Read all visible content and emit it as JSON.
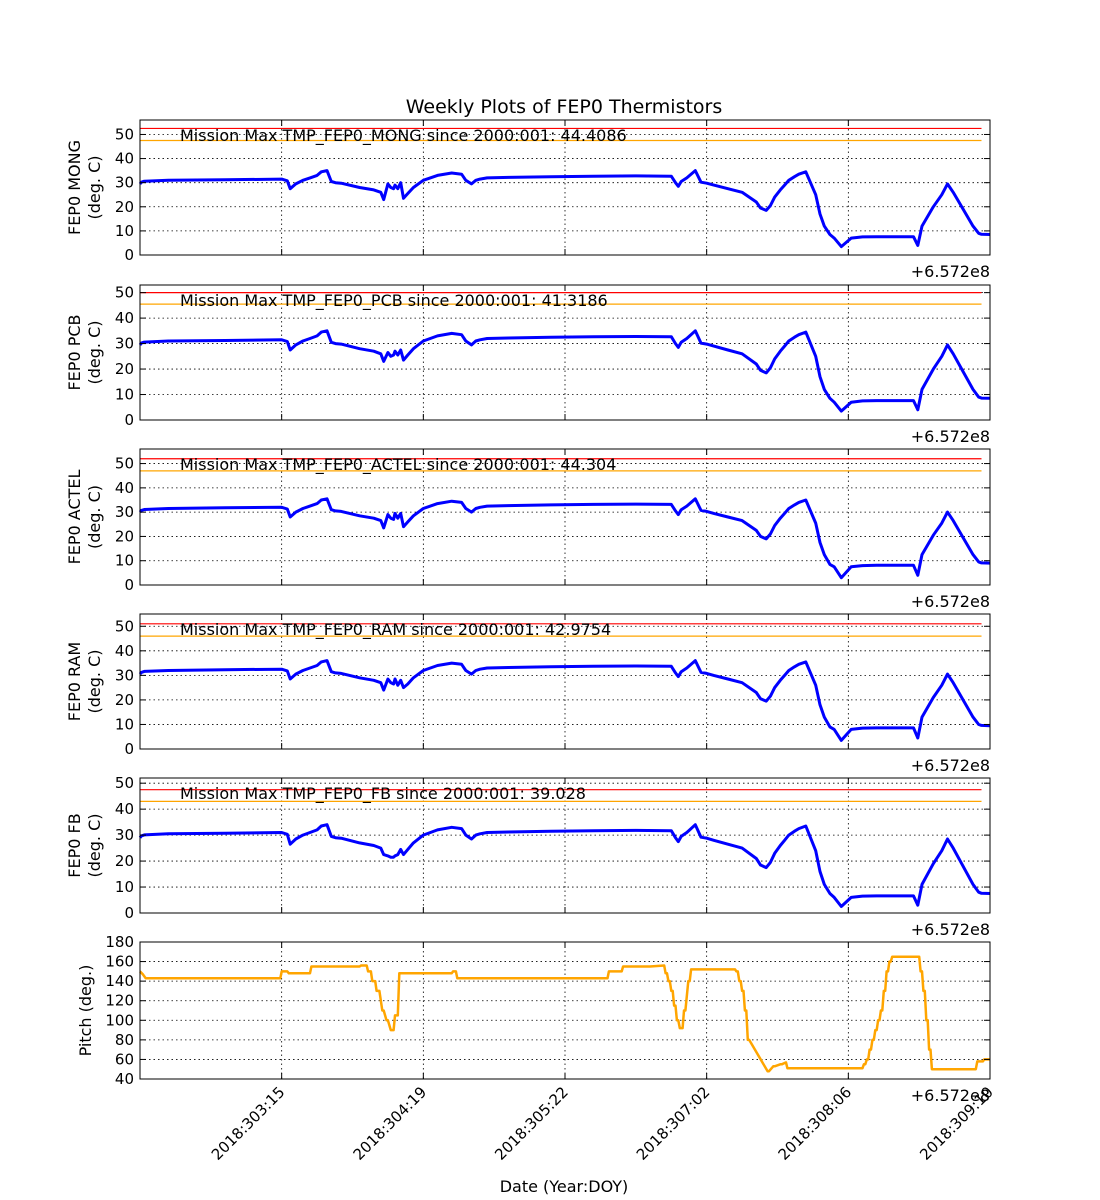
{
  "chart_data": {
    "title": "Weekly Plots of FEP0 Thermistors",
    "xlabel": "Date (Year:DOY)",
    "x_tick_labels": [
      "2018:303:15",
      "2018:304:19",
      "2018:305:22",
      "2018:307:02",
      "2018:308:06",
      "2018:309:10"
    ],
    "x_tick_positions": [
      1.0,
      2.0,
      3.0,
      4.0,
      5.0,
      6.0
    ],
    "x_range": [
      0,
      6
    ],
    "offset_text": "+6.572e8",
    "grid": true,
    "temperature_x": [
      0,
      0.01,
      0.03,
      0.2,
      0.6,
      1.0,
      1.04,
      1.06,
      1.1,
      1.15,
      1.2,
      1.25,
      1.28,
      1.32,
      1.35,
      1.38,
      1.42,
      1.55,
      1.65,
      1.7,
      1.72,
      1.75,
      1.77,
      1.79,
      1.8,
      1.82,
      1.84,
      1.86,
      1.89,
      1.93,
      2.0,
      2.1,
      2.2,
      2.27,
      2.3,
      2.34,
      2.37,
      2.4,
      2.45,
      2.6,
      2.9,
      3.2,
      3.5,
      3.75,
      3.78,
      3.8,
      3.82,
      3.86,
      3.88,
      3.92,
      3.96,
      4.0,
      4.05,
      4.15,
      4.25,
      4.35,
      4.38,
      4.42,
      4.45,
      4.48,
      4.52,
      4.55,
      4.58,
      4.62,
      4.65,
      4.7,
      4.77,
      4.8,
      4.83,
      4.87,
      4.9,
      4.95,
      5.02,
      5.1,
      5.2,
      5.35,
      5.4,
      5.46,
      5.49,
      5.52,
      5.6,
      5.66,
      5.7,
      5.74,
      5.8,
      5.88,
      5.92,
      5.94,
      6.0
    ],
    "pitch_x": [
      0,
      0.02,
      0.04,
      0.5,
      0.99,
      1.0,
      1.04,
      1.05,
      1.2,
      1.21,
      1.55,
      1.56,
      1.6,
      1.61,
      1.63,
      1.64,
      1.66,
      1.67,
      1.69,
      1.71,
      1.72,
      1.74,
      1.75,
      1.77,
      1.79,
      1.8,
      1.82,
      1.83,
      2.2,
      2.21,
      2.23,
      2.24,
      3.0,
      3.3,
      3.31,
      3.4,
      3.41,
      3.6,
      3.7,
      3.71,
      3.72,
      3.73,
      3.74,
      3.75,
      3.76,
      3.77,
      3.78,
      3.79,
      3.8,
      3.81,
      3.83,
      3.84,
      3.85,
      3.87,
      3.88,
      3.89,
      4.2,
      4.21,
      4.22,
      4.23,
      4.24,
      4.25,
      4.26,
      4.27,
      4.28,
      4.29,
      4.3,
      4.43,
      4.44,
      4.47,
      4.48,
      4.52,
      4.53,
      4.56,
      4.57,
      5.1,
      5.11,
      5.12,
      5.13,
      5.14,
      5.15,
      5.16,
      5.17,
      5.18,
      5.19,
      5.2,
      5.21,
      5.22,
      5.23,
      5.24,
      5.25,
      5.26,
      5.27,
      5.28,
      5.29,
      5.3,
      5.31,
      5.32,
      5.33,
      5.34,
      5.35,
      5.36,
      5.37,
      5.38,
      5.39,
      5.5,
      5.51,
      5.52,
      5.53,
      5.54,
      5.55,
      5.56,
      5.57,
      5.58,
      5.59,
      5.9,
      5.91,
      5.95,
      5.96,
      6.0
    ],
    "panels": [
      {
        "ylabel": "FEP0 MONG",
        "yunit": "(deg. C)",
        "ylim": [
          0,
          56
        ],
        "yticks": [
          0,
          10,
          20,
          30,
          40,
          50
        ],
        "red_limit": 52.5,
        "yellow_limit": 47.5,
        "annotation": "Mission Max TMP_FEP0_MONG since 2000:001: 44.4086",
        "values": [
          29.5,
          30.2,
          30.6,
          31.0,
          31.2,
          31.5,
          30.8,
          27.5,
          29.5,
          31.0,
          32.0,
          33.0,
          34.5,
          35.0,
          30.5,
          30.0,
          29.8,
          28.0,
          27.0,
          26.0,
          23.0,
          29.5,
          28.0,
          27.5,
          29.0,
          27.5,
          30.0,
          23.5,
          25.5,
          28.0,
          31.0,
          33.0,
          34.0,
          33.5,
          31.0,
          29.5,
          31.0,
          31.5,
          32.0,
          32.2,
          32.5,
          32.7,
          32.8,
          32.7,
          30.0,
          28.5,
          30.5,
          32.0,
          33.0,
          35.0,
          30.2,
          29.8,
          29.0,
          27.5,
          26.0,
          22.0,
          19.5,
          18.5,
          20.5,
          24.0,
          27.0,
          29.0,
          31.0,
          32.5,
          33.5,
          34.5,
          25.0,
          17.0,
          12.0,
          8.5,
          7.0,
          3.5,
          7.0,
          7.5,
          7.6,
          7.6,
          7.6,
          7.6,
          4.0,
          12.0,
          20.0,
          25.0,
          29.5,
          26.0,
          20.0,
          12.0,
          9.0,
          8.6,
          8.5
        ]
      },
      {
        "ylabel": "FEP0 PCB",
        "yunit": "(deg. C)",
        "ylim": [
          0,
          53
        ],
        "yticks": [
          0,
          10,
          20,
          30,
          40,
          50
        ],
        "red_limit": 50,
        "yellow_limit": 45.5,
        "annotation": "Mission Max TMP_FEP0_PCB since 2000:001: 41.3186",
        "values": [
          29.5,
          30.2,
          30.6,
          31.0,
          31.2,
          31.5,
          30.8,
          27.5,
          29.5,
          31.0,
          32.0,
          33.0,
          34.5,
          35.0,
          30.5,
          30.0,
          29.8,
          28.0,
          27.0,
          26.0,
          23.0,
          26.5,
          25.0,
          25.5,
          27.0,
          25.5,
          27.5,
          23.5,
          25.5,
          28.0,
          31.0,
          33.0,
          34.0,
          33.5,
          31.0,
          29.5,
          31.0,
          31.5,
          32.0,
          32.2,
          32.5,
          32.7,
          32.8,
          32.7,
          30.0,
          28.5,
          30.5,
          32.0,
          33.0,
          35.0,
          30.2,
          29.8,
          29.0,
          27.5,
          26.0,
          22.0,
          19.5,
          18.5,
          20.5,
          24.0,
          27.0,
          29.0,
          31.0,
          32.5,
          33.5,
          34.5,
          25.0,
          17.0,
          12.0,
          8.5,
          7.0,
          3.5,
          7.0,
          7.5,
          7.6,
          7.6,
          7.6,
          7.6,
          4.0,
          12.0,
          20.0,
          25.0,
          29.5,
          26.0,
          20.0,
          12.0,
          9.0,
          8.6,
          8.5
        ]
      },
      {
        "ylabel": "FEP0 ACTEL",
        "yunit": "(deg. C)",
        "ylim": [
          0,
          56
        ],
        "yticks": [
          0,
          10,
          20,
          30,
          40,
          50
        ],
        "red_limit": 52,
        "yellow_limit": 47,
        "annotation": "Mission Max TMP_FEP0_ACTEL since 2000:001: 44.304",
        "values": [
          30.0,
          30.7,
          31.1,
          31.5,
          31.8,
          32.0,
          31.3,
          28.0,
          30.0,
          31.5,
          32.5,
          33.5,
          35.0,
          35.5,
          31.0,
          30.5,
          30.3,
          28.5,
          27.5,
          26.5,
          23.5,
          29.0,
          27.5,
          27.0,
          29.5,
          27.5,
          29.5,
          24.0,
          26.0,
          28.5,
          31.5,
          33.5,
          34.5,
          34.0,
          31.5,
          30.0,
          31.5,
          32.0,
          32.5,
          32.7,
          33.0,
          33.2,
          33.3,
          33.2,
          30.5,
          29.0,
          31.0,
          32.5,
          33.5,
          35.5,
          30.7,
          30.3,
          29.5,
          28.0,
          26.5,
          22.5,
          20.0,
          19.0,
          21.0,
          24.5,
          27.5,
          29.5,
          31.5,
          33.0,
          34.0,
          35.0,
          25.5,
          17.5,
          12.5,
          8.5,
          7.5,
          3.0,
          7.5,
          8.0,
          8.1,
          8.1,
          8.1,
          8.1,
          4.0,
          12.5,
          20.5,
          25.5,
          30.0,
          26.5,
          20.5,
          12.5,
          9.5,
          9.1,
          9.0
        ]
      },
      {
        "ylabel": "FEP0 RAM",
        "yunit": "(deg. C)",
        "ylim": [
          0,
          55
        ],
        "yticks": [
          0,
          10,
          20,
          30,
          40,
          50
        ],
        "red_limit": 51,
        "yellow_limit": 46,
        "annotation": "Mission Max TMP_FEP0_RAM since 2000:001: 42.9754",
        "values": [
          30.5,
          31.2,
          31.6,
          32.0,
          32.3,
          32.5,
          31.8,
          28.5,
          30.5,
          32.0,
          33.0,
          34.0,
          35.5,
          36.0,
          31.5,
          31.0,
          30.8,
          29.0,
          28.0,
          27.0,
          24.0,
          28.5,
          27.0,
          26.5,
          28.5,
          26.0,
          28.0,
          25.0,
          26.5,
          29.0,
          32.0,
          34.0,
          35.0,
          34.5,
          32.0,
          30.5,
          32.0,
          32.5,
          33.0,
          33.2,
          33.5,
          33.7,
          33.8,
          33.7,
          31.0,
          29.5,
          31.5,
          33.0,
          34.0,
          36.0,
          31.2,
          30.8,
          30.0,
          28.5,
          27.0,
          23.0,
          20.5,
          19.5,
          21.5,
          25.0,
          28.0,
          30.0,
          32.0,
          33.5,
          34.5,
          35.5,
          26.0,
          18.0,
          13.0,
          9.0,
          8.0,
          3.5,
          8.0,
          8.5,
          8.6,
          8.6,
          8.6,
          8.6,
          4.5,
          13.0,
          21.0,
          26.0,
          30.5,
          27.0,
          21.0,
          13.0,
          10.0,
          9.6,
          9.5
        ]
      },
      {
        "ylabel": "FEP0 FB",
        "yunit": "(deg. C)",
        "ylim": [
          0,
          52
        ],
        "yticks": [
          0,
          10,
          20,
          30,
          40,
          50
        ],
        "red_limit": 47.5,
        "yellow_limit": 43,
        "annotation": "Mission Max TMP_FEP0_FB since 2000:001: 39.028",
        "values": [
          29.0,
          29.7,
          30.1,
          30.5,
          30.7,
          31.0,
          30.3,
          26.5,
          28.5,
          30.0,
          31.0,
          32.0,
          33.5,
          34.0,
          29.5,
          29.0,
          28.8,
          27.0,
          26.0,
          25.0,
          22.5,
          22.0,
          21.5,
          21.5,
          22.0,
          22.5,
          24.5,
          22.5,
          24.5,
          27.0,
          30.0,
          32.0,
          33.0,
          32.5,
          30.0,
          28.5,
          30.0,
          30.5,
          31.0,
          31.2,
          31.5,
          31.7,
          31.8,
          31.7,
          29.0,
          27.5,
          29.5,
          31.0,
          32.0,
          34.0,
          29.2,
          28.8,
          28.0,
          26.5,
          25.0,
          21.0,
          18.5,
          17.5,
          19.5,
          23.0,
          26.0,
          28.0,
          30.0,
          31.5,
          32.5,
          33.5,
          24.0,
          16.0,
          11.0,
          7.5,
          6.0,
          2.5,
          6.0,
          6.5,
          6.6,
          6.6,
          6.6,
          6.6,
          3.0,
          11.0,
          19.0,
          24.0,
          28.5,
          25.0,
          19.0,
          11.0,
          8.0,
          7.6,
          7.5
        ]
      },
      {
        "ylabel": "Pitch (deg.)",
        "ylim": [
          40,
          180
        ],
        "yticks": [
          40,
          60,
          80,
          100,
          120,
          140,
          160,
          180
        ],
        "values": [
          150,
          147,
          143,
          143,
          143,
          150,
          150,
          148,
          148,
          155,
          155,
          156,
          156,
          150,
          150,
          140,
          140,
          130,
          130,
          110,
          110,
          100,
          100,
          90,
          90,
          105,
          105,
          148,
          148,
          150,
          150,
          143,
          143,
          143,
          150,
          150,
          155,
          155,
          156,
          148,
          148,
          140,
          140,
          130,
          130,
          115,
          115,
          100,
          100,
          92,
          92,
          110,
          110,
          140,
          140,
          152,
          152,
          150,
          150,
          140,
          140,
          130,
          130,
          110,
          110,
          80,
          80,
          48,
          48,
          53,
          53,
          55,
          55,
          57,
          51,
          51,
          55,
          55,
          60,
          60,
          70,
          70,
          80,
          80,
          90,
          90,
          100,
          100,
          110,
          110,
          130,
          130,
          150,
          150,
          160,
          160,
          165,
          165,
          165,
          165,
          165,
          165,
          165,
          165,
          165,
          165,
          150,
          150,
          130,
          130,
          100,
          100,
          70,
          70,
          50,
          50,
          58,
          58,
          60,
          60
        ]
      }
    ]
  },
  "colors": {
    "temperature_line": "#0000ff",
    "pitch_line": "#ffa500",
    "red_limit": "#ff0000",
    "yellow_limit": "#ffa500",
    "axes": "#000000",
    "grid": "#000000"
  }
}
